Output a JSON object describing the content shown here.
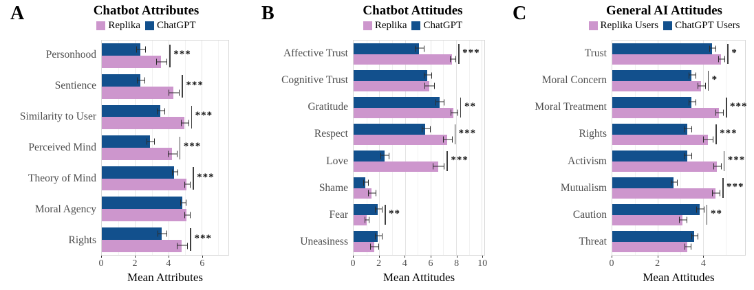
{
  "figure": {
    "background": "#ffffff",
    "bar_color_replika": "#CD96CD",
    "bar_color_chatgpt": "#12508D",
    "grid_major_color": "#e3e3e3",
    "grid_minor_color": "#f1f1f1",
    "label_color": "#4d4d4d"
  },
  "chart_data": [
    {
      "type": "bar",
      "orientation": "horizontal",
      "panel_label": "A",
      "title": "Chatbot Attributes",
      "xlabel": "Mean Attributes",
      "xlim": [
        0,
        7.6
      ],
      "xticks": [
        0,
        2,
        4,
        6
      ],
      "grid": true,
      "legend_position": "top",
      "legend": [
        {
          "label": "Replika",
          "color": "#CD96CD"
        },
        {
          "label": "ChatGPT",
          "color": "#12508D"
        }
      ],
      "categories": [
        "Personhood",
        "Sentience",
        "Similarity to User",
        "Perceived Mind",
        "Theory of Mind",
        "Moral Agency",
        "Rights"
      ],
      "series": [
        {
          "name": "ChatGPT",
          "color": "#12508D",
          "values": [
            2.3,
            2.3,
            3.5,
            2.9,
            4.35,
            4.85,
            3.6
          ],
          "errors": [
            0.25,
            0.2,
            0.2,
            0.2,
            0.15,
            0.15,
            0.25
          ]
        },
        {
          "name": "Replika",
          "color": "#CD96CD",
          "values": [
            3.55,
            4.3,
            4.95,
            4.2,
            5.1,
            5.1,
            4.8
          ],
          "errors": [
            0.3,
            0.3,
            0.2,
            0.25,
            0.15,
            0.15,
            0.3
          ]
        }
      ],
      "significance": [
        "***",
        "***",
        "***",
        "***",
        "***",
        "",
        "***"
      ]
    },
    {
      "type": "bar",
      "orientation": "horizontal",
      "panel_label": "B",
      "title": "Chatbot Attitudes",
      "xlabel": "Mean Attitudes",
      "xlim": [
        0,
        10.2
      ],
      "xticks": [
        0,
        2,
        4,
        6,
        8,
        10
      ],
      "grid": true,
      "legend_position": "top",
      "legend": [
        {
          "label": "Replika",
          "color": "#CD96CD"
        },
        {
          "label": "ChatGPT",
          "color": "#12508D"
        }
      ],
      "categories": [
        "Affective Trust",
        "Cognitive Trust",
        "Gratitude",
        "Respect",
        "Love",
        "Shame",
        "Fear",
        "Uneasiness"
      ],
      "series": [
        {
          "name": "ChatGPT",
          "color": "#12508D",
          "values": [
            5.1,
            5.75,
            6.7,
            5.6,
            2.4,
            0.9,
            1.9,
            1.9
          ],
          "errors": [
            0.3,
            0.25,
            0.3,
            0.3,
            0.3,
            0.15,
            0.25,
            0.25
          ]
        },
        {
          "name": "Replika",
          "color": "#CD96CD",
          "values": [
            7.7,
            5.9,
            7.8,
            7.3,
            6.6,
            1.4,
            1.0,
            1.6
          ],
          "errors": [
            0.2,
            0.35,
            0.25,
            0.3,
            0.4,
            0.25,
            0.15,
            0.3
          ]
        }
      ],
      "significance": [
        "***",
        "",
        "**",
        "***",
        "***",
        "",
        "**",
        ""
      ]
    },
    {
      "type": "bar",
      "orientation": "horizontal",
      "panel_label": "C",
      "title": "General AI Attitudes",
      "xlabel": "Mean Attitudes",
      "xlim": [
        0,
        5.85
      ],
      "xticks": [
        0,
        2,
        4
      ],
      "grid": true,
      "legend_position": "top",
      "legend": [
        {
          "label": "Replika Users",
          "color": "#CD96CD"
        },
        {
          "label": "ChatGPT Users",
          "color": "#12508D"
        }
      ],
      "categories": [
        "Trust",
        "Moral Concern",
        "Moral Treatment",
        "Rights",
        "Activism",
        "Mutualism",
        "Caution",
        "Threat"
      ],
      "series": [
        {
          "name": "ChatGPT Users",
          "color": "#12508D",
          "values": [
            4.4,
            3.5,
            3.5,
            3.3,
            3.3,
            2.7,
            3.85,
            3.6
          ],
          "errors": [
            0.12,
            0.15,
            0.15,
            0.15,
            0.15,
            0.12,
            0.15,
            0.12
          ]
        },
        {
          "name": "Replika Users",
          "color": "#CD96CD",
          "values": [
            4.8,
            3.9,
            4.7,
            4.2,
            4.6,
            4.55,
            3.1,
            3.3
          ],
          "errors": [
            0.12,
            0.15,
            0.15,
            0.2,
            0.15,
            0.15,
            0.15,
            0.12
          ]
        }
      ],
      "significance": [
        "*",
        "*",
        "***",
        "***",
        "***",
        "***",
        "**",
        ""
      ]
    }
  ]
}
